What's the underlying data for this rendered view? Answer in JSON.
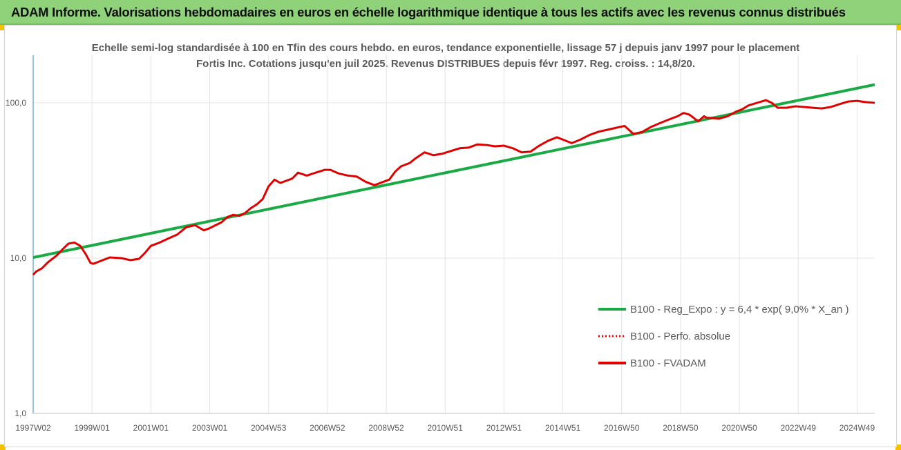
{
  "banner": {
    "title": "ADAM Informe. Valorisations hebdomadaires en euros en échelle logarithmique identique à tous les actifs avec les revenus connus distribués"
  },
  "chart_data": {
    "type": "line",
    "title": "Echelle semi-log standardisée à 100 en Tfin des cours hebdo. en euros, tendance exponentielle, lissage 57 j depuis janv 1997 pour le placement Fortis Inc. Cotations jusqu'en juil 2025. Revenus DISTRIBUES depuis févr 1997. Reg. croiss. : 14,8/20.",
    "xlabel": "",
    "ylabel": "",
    "y_scale": "log",
    "ylim": [
      1,
      200
    ],
    "xlim": [
      1997.0,
      2025.6
    ],
    "grid": true,
    "legend_position": "bottom-right",
    "x_ticks": [
      "1997W02",
      "1999W01",
      "2001W01",
      "2003W01",
      "2004W53",
      "2006W52",
      "2008W52",
      "2010W51",
      "2012W51",
      "2014W51",
      "2016W50",
      "2018W50",
      "2020W50",
      "2022W49",
      "2024W49"
    ],
    "x_tick_positions": [
      1997.0,
      1999.0,
      2001.0,
      2003.0,
      2005.0,
      2007.0,
      2009.0,
      2011.0,
      2013.0,
      2015.0,
      2017.0,
      2019.0,
      2021.0,
      2023.0,
      2025.0
    ],
    "y_ticks": [
      "1,0",
      "10,0",
      "100,0"
    ],
    "y_tick_values": [
      1,
      10,
      100
    ],
    "series": [
      {
        "name": "B100 - Reg_Expo : y = 6,4 * exp( 9,0% *  X_an )",
        "color": "#1aaa45",
        "style": "solid",
        "x": [
          1997.0,
          2025.6
        ],
        "y": [
          10.1,
          131
        ]
      },
      {
        "name": "B100 - Perfo. absolue",
        "color": "#ff0000",
        "style": "dotted",
        "x": [],
        "y": []
      },
      {
        "name": "B100 - FVADAM",
        "color": "#e00000",
        "style": "solid",
        "x": [
          1997.0,
          1997.1,
          1997.3,
          1997.5,
          1997.8,
          1998.0,
          1998.2,
          1998.4,
          1998.6,
          1998.8,
          1998.95,
          1999.05,
          1999.3,
          1999.6,
          2000.0,
          2000.3,
          2000.6,
          2000.8,
          2001.0,
          2001.3,
          2001.6,
          2001.9,
          2002.2,
          2002.5,
          2002.8,
          2003.0,
          2003.2,
          2003.4,
          2003.6,
          2003.8,
          2004.0,
          2004.2,
          2004.4,
          2004.6,
          2004.8,
          2005.0,
          2005.2,
          2005.4,
          2005.6,
          2005.8,
          2006.0,
          2006.3,
          2006.6,
          2006.9,
          2007.1,
          2007.4,
          2007.7,
          2008.0,
          2008.3,
          2008.6,
          2008.9,
          2009.1,
          2009.3,
          2009.5,
          2009.8,
          2010.0,
          2010.3,
          2010.6,
          2010.9,
          2011.2,
          2011.5,
          2011.8,
          2012.1,
          2012.4,
          2012.7,
          2013.0,
          2013.3,
          2013.6,
          2013.9,
          2014.2,
          2014.5,
          2014.8,
          2015.0,
          2015.3,
          2015.6,
          2015.9,
          2016.2,
          2016.5,
          2016.8,
          2017.1,
          2017.4,
          2017.7,
          2018.0,
          2018.3,
          2018.6,
          2018.9,
          2019.1,
          2019.3,
          2019.6,
          2019.8,
          2019.9,
          2020.0,
          2020.3,
          2020.6,
          2020.9,
          2021.1,
          2021.3,
          2021.6,
          2021.9,
          2022.1,
          2022.3,
          2022.6,
          2022.9,
          2023.2,
          2023.5,
          2023.8,
          2024.1,
          2024.4,
          2024.7,
          2025.0,
          2025.3,
          2025.6
        ],
        "y": [
          7.8,
          8.2,
          8.6,
          9.4,
          10.4,
          11.4,
          12.4,
          12.6,
          12.0,
          10.5,
          9.3,
          9.2,
          9.6,
          10.1,
          10.0,
          9.7,
          9.9,
          10.8,
          12.0,
          12.6,
          13.4,
          14.2,
          15.8,
          16.3,
          15.1,
          15.6,
          16.3,
          17.0,
          18.4,
          19.0,
          18.7,
          19.5,
          21.0,
          22.2,
          24.0,
          29.0,
          32.0,
          30.5,
          31.5,
          32.5,
          35.5,
          34.0,
          35.5,
          37.0,
          37.0,
          35.0,
          34.0,
          33.5,
          31.0,
          29.5,
          31.0,
          32.0,
          36.0,
          39.0,
          41.0,
          44.0,
          48.0,
          46.0,
          47.0,
          49.0,
          51.0,
          51.5,
          54.0,
          53.5,
          52.5,
          53.0,
          51.0,
          48.0,
          48.5,
          53.0,
          57.0,
          60.0,
          58.0,
          55.0,
          58.0,
          62.0,
          65.0,
          67.0,
          69.0,
          71.0,
          63.0,
          65.0,
          70.0,
          74.0,
          78.0,
          82.0,
          86.0,
          84.0,
          76.0,
          82.0,
          80.0,
          80.0,
          79.0,
          82.0,
          88.0,
          91.0,
          96.0,
          100.0,
          104.0,
          100.0,
          93.0,
          93.0,
          95.0,
          94.0,
          93.0,
          92.0,
          94.0,
          98.0,
          102.0,
          103.0,
          101.0,
          100.0
        ]
      }
    ]
  }
}
